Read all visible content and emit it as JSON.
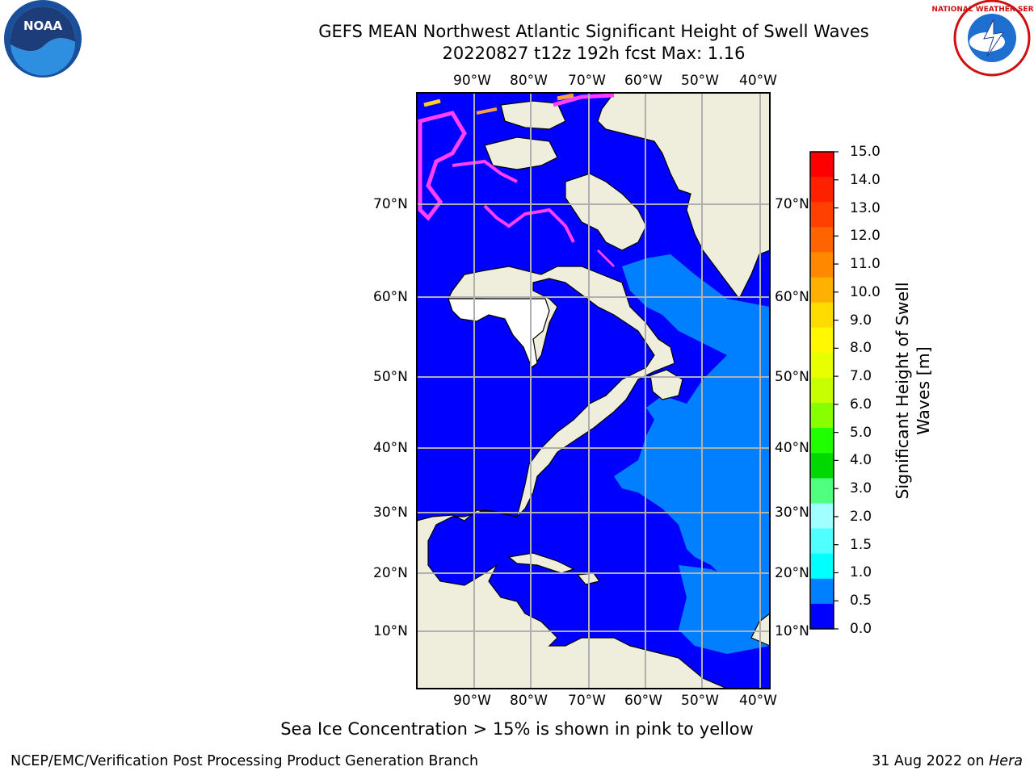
{
  "header": {
    "title": "GEFS MEAN Northwest Atlantic Significant Height of Swell Waves",
    "subtitle": "20220827 t12z 192h fcst   Max: 1.16"
  },
  "logos": {
    "left": {
      "name": "noaa-logo",
      "text": "NOAA"
    },
    "right": {
      "name": "nws-logo",
      "text": "NATIONAL WEATHER SERVICE"
    }
  },
  "map": {
    "lon_ticks": [
      "90°W",
      "80°W",
      "70°W",
      "60°W",
      "50°W",
      "40°W"
    ],
    "lat_ticks": [
      "70°N",
      "60°N",
      "50°N",
      "40°N",
      "30°N",
      "20°N",
      "10°N"
    ],
    "colors": {
      "land": "#efeddc",
      "ocean_low": "#0000ff",
      "ocean_mid": "#0080ff",
      "ocean_high": "#00d8ff",
      "grid": "#b0b0b0",
      "coast": "#000000",
      "sea_ice": [
        "#ff40ff",
        "#ffa040",
        "#ffd020"
      ]
    }
  },
  "colorbar": {
    "title": "Significant Height of Swell Waves [m]",
    "title_line1": "Significant Height of Swell",
    "title_line2": "Waves [m]",
    "labels": [
      "15.0",
      "14.0",
      "13.0",
      "12.0",
      "11.0",
      "10.0",
      "9.0",
      "8.0",
      "7.0",
      "6.0",
      "5.0",
      "4.0",
      "3.0",
      "2.0",
      "1.5",
      "1.0",
      "0.5",
      "0.0"
    ],
    "colors": [
      "#ff0000",
      "#ff2000",
      "#ff4000",
      "#ff6400",
      "#ff8800",
      "#ffb000",
      "#ffdc00",
      "#fff800",
      "#e8ff00",
      "#c8ff00",
      "#88ff00",
      "#20ff00",
      "#00d800",
      "#50ff80",
      "#a0ffff",
      "#50ffff",
      "#00ffff",
      "#0080ff",
      "#0000ff"
    ]
  },
  "footer": {
    "note": "Sea Ice Concentration > 15% is shown in pink to yellow",
    "left": "NCEP/EMC/Verification Post Processing Product Generation Branch",
    "right_date": "31 Aug 2022 on",
    "right_machine": "Hera"
  }
}
